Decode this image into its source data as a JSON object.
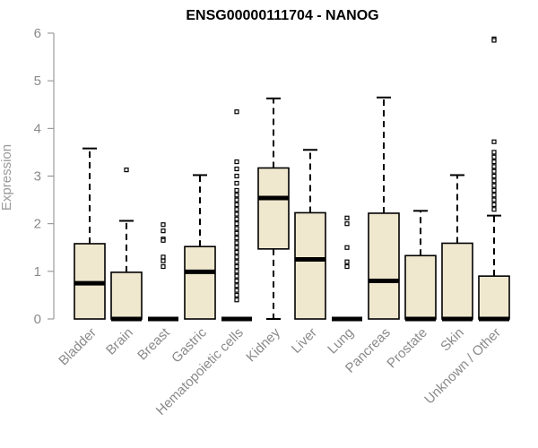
{
  "chart_data": {
    "type": "box",
    "title": "ENSG00000111704 - NANOG",
    "xlabel": "",
    "ylabel": "Expression",
    "ylim": [
      0,
      6
    ],
    "yticks": [
      "0",
      "1",
      "2",
      "3",
      "4",
      "5",
      "6"
    ],
    "grid": false,
    "categories": [
      "Bladder",
      "Brain",
      "Breast",
      "Gastric",
      "Hematopoietic cells",
      "Kidney",
      "Liver",
      "Lung",
      "Pancreas",
      "Prostate",
      "Skin",
      "Unknown / Other"
    ],
    "boxes": [
      {
        "min": 0,
        "q1": 0,
        "median": 0.75,
        "q3": 1.58,
        "max": 3.58,
        "outliers": []
      },
      {
        "min": 0,
        "q1": 0,
        "median": 0,
        "q3": 0.98,
        "max": 2.06,
        "outliers": [
          3.13
        ]
      },
      {
        "min": 0,
        "q1": 0,
        "median": 0,
        "q3": 0,
        "max": 0,
        "outliers": [
          1.98,
          1.85,
          1.68,
          1.65,
          1.3,
          1.22,
          1.1
        ]
      },
      {
        "min": 0,
        "q1": 0,
        "median": 0.99,
        "q3": 1.52,
        "max": 3.02,
        "outliers": []
      },
      {
        "min": 0,
        "q1": 0,
        "median": 0,
        "q3": 0,
        "max": 0,
        "outliers": [
          4.35,
          3.3,
          3.15,
          3.0,
          2.85,
          2.7,
          2.6,
          2.5,
          2.4,
          2.3,
          2.2,
          2.1,
          2.0,
          1.9,
          1.8,
          1.7,
          1.6,
          1.5,
          1.4,
          1.3,
          1.2,
          1.1,
          1.0,
          0.9,
          0.8,
          0.7,
          0.6,
          0.5,
          0.4
        ]
      },
      {
        "min": 0,
        "q1": 1.47,
        "median": 2.54,
        "q3": 3.17,
        "max": 4.63,
        "outliers": []
      },
      {
        "min": 0,
        "q1": 0,
        "median": 1.25,
        "q3": 2.23,
        "max": 3.55,
        "outliers": []
      },
      {
        "min": 0,
        "q1": 0,
        "median": 0,
        "q3": 0,
        "max": 0,
        "outliers": [
          2.12,
          2.0,
          1.5,
          1.2,
          1.1
        ]
      },
      {
        "min": 0,
        "q1": 0,
        "median": 0.8,
        "q3": 2.22,
        "max": 4.65,
        "outliers": []
      },
      {
        "min": 0,
        "q1": 0,
        "median": 0,
        "q3": 1.33,
        "max": 2.27,
        "outliers": []
      },
      {
        "min": 0,
        "q1": 0,
        "median": 0,
        "q3": 1.59,
        "max": 3.02,
        "outliers": []
      },
      {
        "min": 0,
        "q1": 0,
        "median": 0,
        "q3": 0.9,
        "max": 2.17,
        "outliers": [
          5.88,
          5.85,
          3.72,
          3.5,
          3.4,
          3.3,
          3.2,
          3.1,
          3.0,
          2.9,
          2.8,
          2.7,
          2.6,
          2.5,
          2.4,
          2.3
        ]
      }
    ],
    "colors": {
      "box_fill": "#efe8cf",
      "box_stroke": "#000000",
      "median": "#000000",
      "axis": "#8a8a8a",
      "text": "#8a8a8a"
    }
  }
}
